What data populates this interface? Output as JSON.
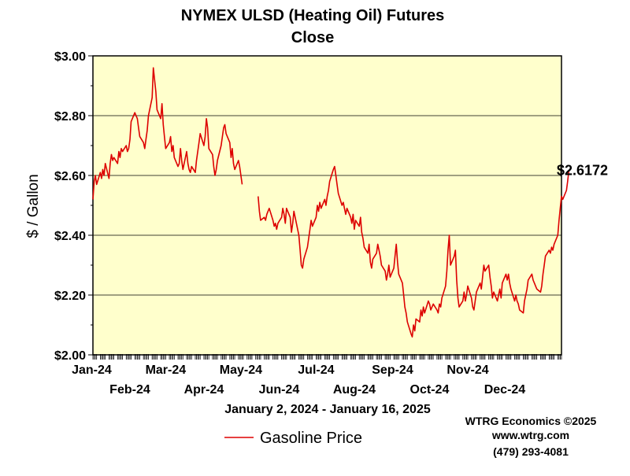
{
  "chart_data": {
    "type": "line",
    "title": "NYMEX ULSD (Heating Oil) Futures",
    "subtitle": "Close",
    "ylabel": "$ / Gallon",
    "xlabel": "January 2, 2024 - January 16, 2025",
    "ylim": [
      2.0,
      3.0
    ],
    "yticks": [
      "$2.00",
      "$2.20",
      "$2.40",
      "$2.60",
      "$2.80",
      "$3.00"
    ],
    "ytick_values": [
      2.0,
      2.2,
      2.4,
      2.6,
      2.8,
      3.0
    ],
    "grid": true,
    "xticks_upper": [
      "Jan-24",
      "Mar-24",
      "May-24",
      "Jul-24",
      "Sep-24",
      "Nov-24"
    ],
    "xticks_lower": [
      "Feb-24",
      "Apr-24",
      "Jun-24",
      "Aug-24",
      "Oct-24",
      "Dec-24"
    ],
    "legend_placement": "bottom-left",
    "series": [
      {
        "name": "Gasoline Price",
        "color": "#dd0000",
        "segments": [
          {
            "start_date": "2024-01-02",
            "values": [
              2.52,
              2.58,
              2.6,
              2.57,
              2.61,
              2.59,
              2.62,
              2.6,
              2.64,
              2.59,
              2.64,
              2.67,
              2.65,
              2.66,
              2.64,
              2.68,
              2.66,
              2.69,
              2.68,
              2.7,
              2.68,
              2.69,
              2.72,
              2.78,
              2.81,
              2.8,
              2.79,
              2.76,
              2.73,
              2.71,
              2.69,
              2.72,
              2.75,
              2.8,
              2.86,
              2.96,
              2.92,
              2.88,
              2.82,
              2.79,
              2.84,
              2.77,
              2.73,
              2.69,
              2.71,
              2.73,
              2.68,
              2.7,
              2.66,
              2.63,
              2.64,
              2.69,
              2.65,
              2.62,
              2.68,
              2.64,
              2.62,
              2.61,
              2.63,
              2.61,
              2.65,
              2.68,
              2.71,
              2.74,
              2.7,
              2.73,
              2.79,
              2.76,
              2.69,
              2.67,
              2.63,
              2.6,
              2.62,
              2.65,
              2.7,
              2.73,
              2.76,
              2.77,
              2.74,
              2.71,
              2.66,
              2.69,
              2.64,
              2.62,
              2.65,
              2.63,
              2.6,
              2.57
            ]
          },
          {
            "start_date": "2024-05-15",
            "values": [
              2.53,
              2.48,
              2.45,
              2.46,
              2.45,
              2.47,
              2.48,
              2.49,
              2.45,
              2.43,
              2.44,
              2.42,
              2.44,
              2.46,
              2.49,
              2.47,
              2.44,
              2.49,
              2.46,
              2.41,
              2.44,
              2.48,
              2.46,
              2.4,
              2.35,
              2.3,
              2.29,
              2.32,
              2.36,
              2.39,
              2.42,
              2.45,
              2.43,
              2.46,
              2.5,
              2.48,
              2.51,
              2.49,
              2.52,
              2.5,
              2.53,
              2.55,
              2.58,
              2.62,
              2.63,
              2.6,
              2.57,
              2.54,
              2.5,
              2.51,
              2.49,
              2.47,
              2.49,
              2.46,
              2.44,
              2.47,
              2.42,
              2.45,
              2.43,
              2.46,
              2.41,
              2.39,
              2.36,
              2.34,
              2.37,
              2.31,
              2.29,
              2.32,
              2.34,
              2.37,
              2.35,
              2.33,
              2.3,
              2.28,
              2.25,
              2.27,
              2.3,
              2.26,
              2.29,
              2.33,
              2.37,
              2.31,
              2.27,
              2.24,
              2.2,
              2.16,
              2.14,
              2.11,
              2.07,
              2.06,
              2.1,
              2.08,
              2.12,
              2.11,
              2.15,
              2.13,
              2.16,
              2.14,
              2.18,
              2.17,
              2.15,
              2.16,
              2.17,
              2.15,
              2.14,
              2.17,
              2.16,
              2.19,
              2.23,
              2.28,
              2.35,
              2.4,
              2.3,
              2.33,
              2.35,
              2.25,
              2.19,
              2.16,
              2.18,
              2.21,
              2.18,
              2.2,
              2.23,
              2.19,
              2.16,
              2.15,
              2.18,
              2.21,
              2.24,
              2.22,
              2.26,
              2.3,
              2.28,
              2.3,
              2.26,
              2.23,
              2.19,
              2.21,
              2.18,
              2.2,
              2.22,
              2.19,
              2.24,
              2.27,
              2.25,
              2.27,
              2.24,
              2.22,
              2.18,
              2.2,
              2.18,
              2.17,
              2.15,
              2.14,
              2.18,
              2.2,
              2.22,
              2.25,
              2.27,
              2.25,
              2.24,
              2.23,
              2.22,
              2.21,
              2.23,
              2.27,
              2.3,
              2.33,
              2.35,
              2.34,
              2.36,
              2.35,
              2.37,
              2.4,
              2.45,
              2.49,
              2.53,
              2.52,
              2.55,
              2.58,
              2.6172
            ]
          }
        ]
      }
    ],
    "last_value_label": "$2.6172"
  },
  "credits": {
    "line1": "WTRG Economics ©2025",
    "line2": "www.wtrg.com",
    "line3": "(479) 293-4081"
  }
}
